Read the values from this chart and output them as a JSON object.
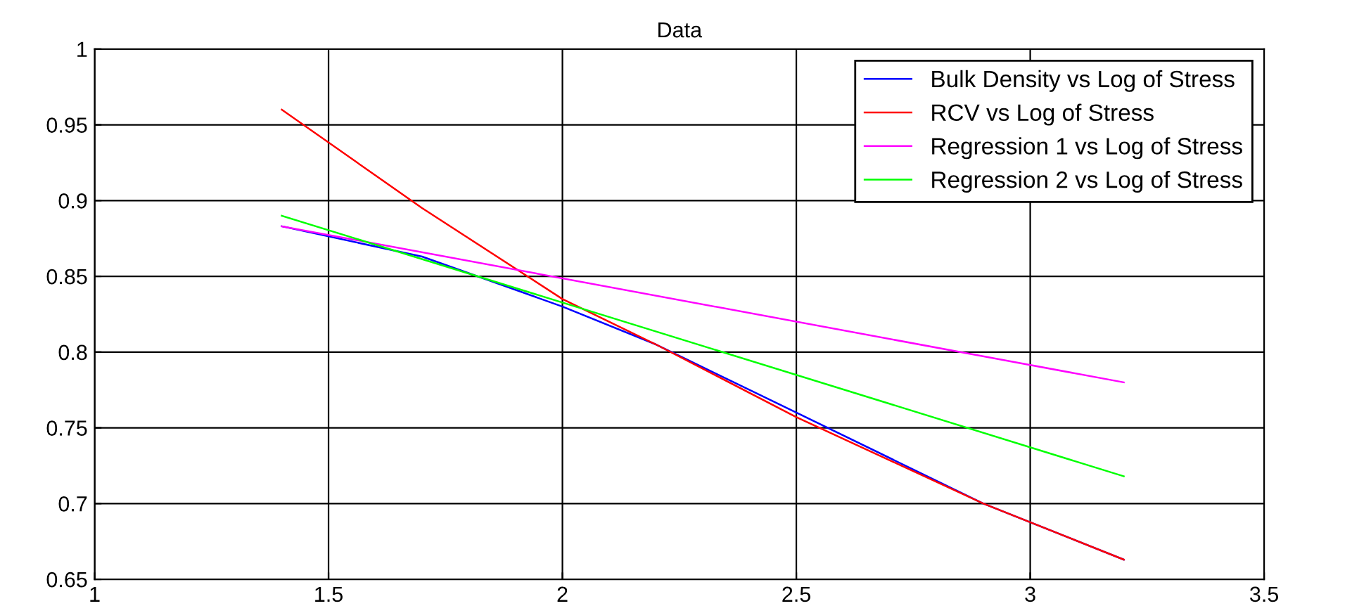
{
  "chart_data": {
    "type": "line",
    "title": "Data",
    "xlim": [
      1,
      3.5
    ],
    "ylim": [
      0.65,
      1
    ],
    "xticks": [
      1,
      1.5,
      2,
      2.5,
      3,
      3.5
    ],
    "yticks": [
      0.65,
      0.7,
      0.75,
      0.8,
      0.85,
      0.9,
      0.95,
      1
    ],
    "grid": true,
    "legend": "top right",
    "marker": "none",
    "line_style": "solid",
    "series": [
      {
        "name": "Bulk Density vs Log of Stress",
        "color": "#0000ff",
        "x": [
          1.4,
          1.7,
          2.0,
          2.2,
          2.5,
          2.9,
          3.2
        ],
        "values": [
          0.883,
          0.863,
          0.83,
          0.805,
          0.76,
          0.7,
          0.663
        ]
      },
      {
        "name": "RCV vs Log of Stress",
        "color": "#ff0000",
        "x": [
          1.4,
          1.7,
          2.0,
          2.2,
          2.5,
          2.9,
          3.2
        ],
        "values": [
          0.96,
          0.895,
          0.835,
          0.805,
          0.757,
          0.7,
          0.663
        ]
      },
      {
        "name": "Regression 1 vs Log of Stress",
        "color": "#ff00ff",
        "x": [
          1.4,
          3.2
        ],
        "values": [
          0.883,
          0.78
        ]
      },
      {
        "name": "Regression 2 vs Log of Stress",
        "color": "#00ff00",
        "x": [
          1.4,
          3.2
        ],
        "values": [
          0.89,
          0.718
        ]
      }
    ]
  }
}
